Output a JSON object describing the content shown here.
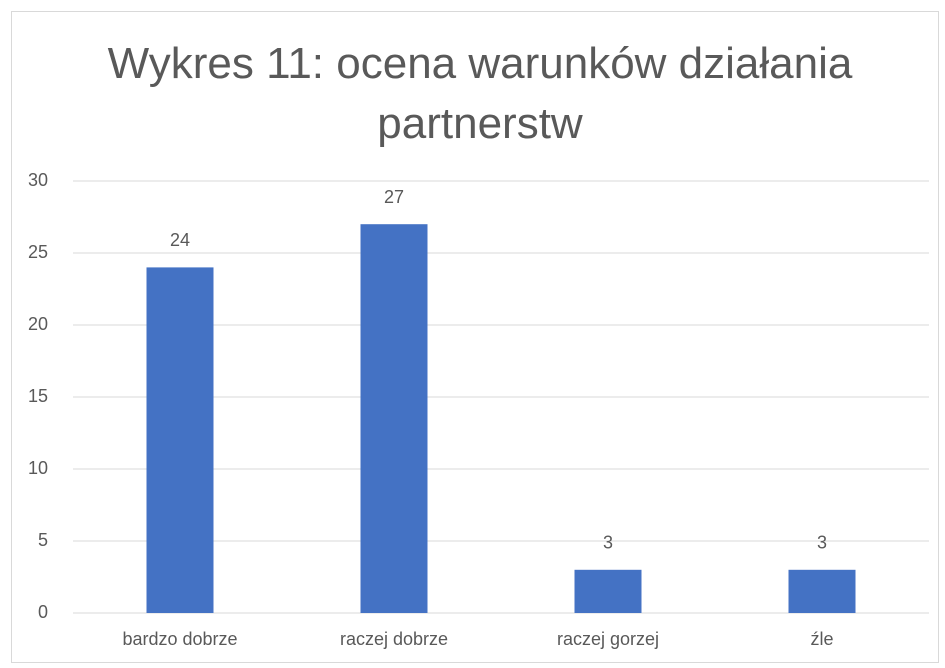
{
  "chart_data": {
    "type": "bar",
    "title": "Wykres 11: ocena warunków działania partnerstw",
    "categories": [
      "bardzo dobrze",
      "raczej dobrze",
      "raczej gorzej",
      "źle"
    ],
    "values": [
      24,
      27,
      3,
      3
    ],
    "color": "#4472c4",
    "ylim": [
      0,
      30
    ],
    "yticks": [
      0,
      5,
      10,
      15,
      20,
      25,
      30
    ],
    "grid": true
  }
}
